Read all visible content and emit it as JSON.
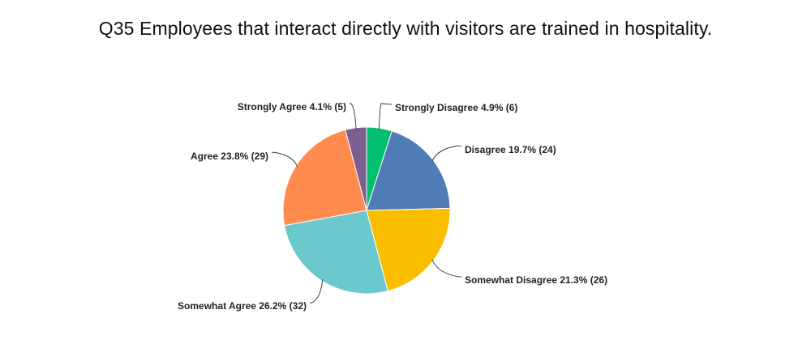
{
  "chart_data": {
    "type": "pie",
    "title": "Q35 Employees that interact directly with visitors are trained in hospitality.",
    "start_angle_deg": 0,
    "direction": "clockwise",
    "slices": [
      {
        "label": "Strongly Disagree",
        "percent": 4.9,
        "count": 6,
        "display": "Strongly Disagree 4.9% (6)",
        "color": "#00bf6f"
      },
      {
        "label": "Disagree",
        "percent": 19.7,
        "count": 24,
        "display": "Disagree 19.7% (24)",
        "color": "#507cb6"
      },
      {
        "label": "Somewhat Disagree",
        "percent": 21.3,
        "count": 26,
        "display": "Somewhat Disagree 21.3% (26)",
        "color": "#f9be00"
      },
      {
        "label": "Somewhat Agree",
        "percent": 26.2,
        "count": 32,
        "display": "Somewhat Agree 26.2% (32)",
        "color": "#6bc8cd"
      },
      {
        "label": "Agree",
        "percent": 23.8,
        "count": 29,
        "display": "Agree 23.8% (29)",
        "color": "#ff8b4f"
      },
      {
        "label": "Strongly Agree",
        "percent": 4.1,
        "count": 5,
        "display": "Strongly Agree 4.1% (5)",
        "color": "#7d5e90"
      }
    ]
  }
}
